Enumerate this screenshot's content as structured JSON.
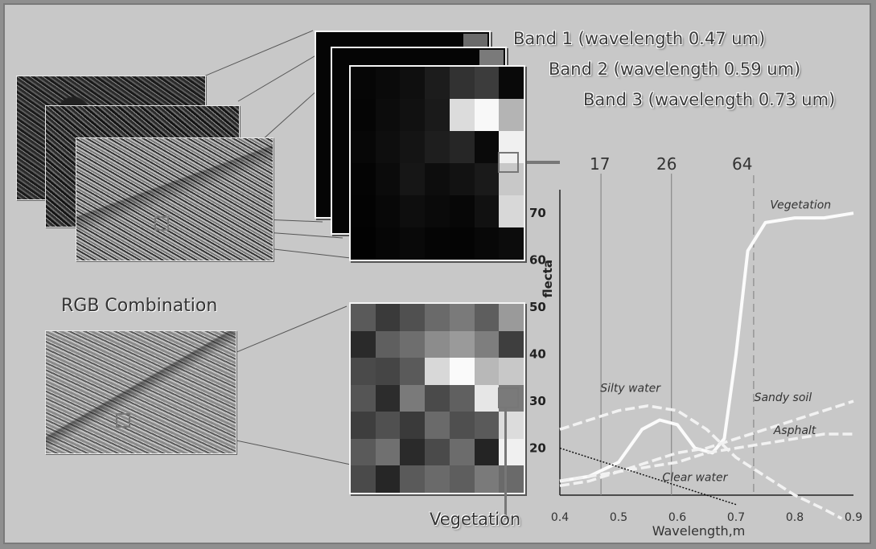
{
  "bands": [
    {
      "label": "Band 1 (wavelength 0.47 um)",
      "value": "17"
    },
    {
      "label": "Band 2 (wavelength 0.59 um)",
      "value": "26"
    },
    {
      "label": "Band 3 (wavelength 0.73 um)",
      "value": "64"
    }
  ],
  "rgb_label": "RGB Combination",
  "vegetation_label": "Vegetation",
  "band_grid_shades": [
    [
      "#060606",
      "#0a0a0a",
      "#0f0f0f",
      "#1c1c1c",
      "#323232",
      "#3c3c3c",
      "#090909"
    ],
    [
      "#050505",
      "#0c0c0c",
      "#111111",
      "#1a1a1a",
      "#dcdcdc",
      "#f8f8f8",
      "#b4b4b4"
    ],
    [
      "#070707",
      "#0e0e0e",
      "#141414",
      "#1e1e1e",
      "#262626",
      "#0a0a0a",
      "#f0f0f0"
    ],
    [
      "#040404",
      "#0b0b0b",
      "#161616",
      "#0d0d0d",
      "#121212",
      "#1a1a1a",
      "#c8c8c8"
    ],
    [
      "#030303",
      "#080808",
      "#0e0e0e",
      "#0a0a0a",
      "#070707",
      "#111111",
      "#d8d8d8"
    ],
    [
      "#020202",
      "#060606",
      "#090909",
      "#050505",
      "#040404",
      "#080808",
      "#0c0c0c"
    ]
  ],
  "rgb_grid_shades": [
    [
      "#5a5a5a",
      "#3a3a3a",
      "#505050",
      "#6a6a6a",
      "#7a7a7a",
      "#5e5e5e",
      "#9a9a9a"
    ],
    [
      "#2a2a2a",
      "#5f5f5f",
      "#6e6e6e",
      "#8c8c8c",
      "#9a9a9a",
      "#7e7e7e",
      "#3e3e3e"
    ],
    [
      "#4a4a4a",
      "#454545",
      "#5a5a5a",
      "#d8d8d8",
      "#fafafa",
      "#b8b8b8",
      "#c8c8c8"
    ],
    [
      "#555555",
      "#2c2c2c",
      "#7a7a7a",
      "#4a4a4a",
      "#606060",
      "#e6e6e6",
      "#7a7a7a"
    ],
    [
      "#3e3e3e",
      "#505050",
      "#3a3a3a",
      "#6a6a6a",
      "#4f4f4f",
      "#5a5a5a",
      "#dcdcdc"
    ],
    [
      "#5a5a5a",
      "#707070",
      "#2a2a2a",
      "#4a4a4a",
      "#6c6c6c",
      "#242424",
      "#f0f0f0"
    ],
    [
      "#4a4a4a",
      "#262626",
      "#5a5a5a",
      "#6a6a6a",
      "#5e5e5e",
      "#7a7a7a",
      "#6a6a6a"
    ]
  ],
  "chart_data": {
    "type": "line",
    "xlabel": "Wavelength,m",
    "ylabel": "flecta",
    "xlim": [
      0.4,
      0.9
    ],
    "ylim": [
      10,
      75
    ],
    "x_ticks": [
      "0.4",
      "0.5",
      "0.6",
      "0.7",
      "0.8",
      "0.9"
    ],
    "y_ticks": [
      "20",
      "30",
      "40",
      "50",
      "60",
      "70"
    ],
    "band_markers_x": [
      0.47,
      0.59,
      0.73
    ],
    "series": [
      {
        "name": "Vegetation",
        "style": "solid-white",
        "x": [
          0.4,
          0.45,
          0.5,
          0.54,
          0.57,
          0.6,
          0.63,
          0.66,
          0.68,
          0.7,
          0.72,
          0.75,
          0.8,
          0.85,
          0.9
        ],
        "y": [
          13,
          14,
          17,
          24,
          26,
          25,
          20,
          19,
          22,
          40,
          62,
          68,
          69,
          69,
          70
        ]
      },
      {
        "name": "Silty water",
        "style": "dashed-white",
        "x": [
          0.4,
          0.45,
          0.5,
          0.55,
          0.6,
          0.65,
          0.7,
          0.75,
          0.8,
          0.85,
          0.88
        ],
        "y": [
          24,
          26,
          28,
          29,
          28,
          24,
          18,
          14,
          10,
          7,
          5
        ]
      },
      {
        "name": "Sandy soil",
        "style": "dashed-white",
        "x": [
          0.4,
          0.45,
          0.5,
          0.55,
          0.6,
          0.65,
          0.7,
          0.75,
          0.8,
          0.85,
          0.9
        ],
        "y": [
          12,
          13,
          15,
          17,
          19,
          20,
          22,
          24,
          26,
          28,
          30
        ]
      },
      {
        "name": "Asphalt",
        "style": "dashed-white",
        "x": [
          0.4,
          0.45,
          0.5,
          0.55,
          0.6,
          0.65,
          0.7,
          0.75,
          0.8,
          0.85,
          0.9
        ],
        "y": [
          13,
          14,
          15,
          16,
          17,
          19,
          20,
          21,
          22,
          23,
          23
        ]
      },
      {
        "name": "Clear water",
        "style": "dotted-black",
        "x": [
          0.4,
          0.45,
          0.5,
          0.55,
          0.6,
          0.65,
          0.7
        ],
        "y": [
          20,
          18,
          16,
          14,
          12,
          10,
          8
        ]
      }
    ],
    "curve_labels": [
      {
        "text": "Vegetation",
        "x": 0.81,
        "y": 71
      },
      {
        "text": "Silty water",
        "x": 0.52,
        "y": 32
      },
      {
        "text": "Sandy soil",
        "x": 0.78,
        "y": 30
      },
      {
        "text": "Asphalt",
        "x": 0.8,
        "y": 23
      },
      {
        "text": "Clear water",
        "x": 0.63,
        "y": 13
      }
    ]
  }
}
